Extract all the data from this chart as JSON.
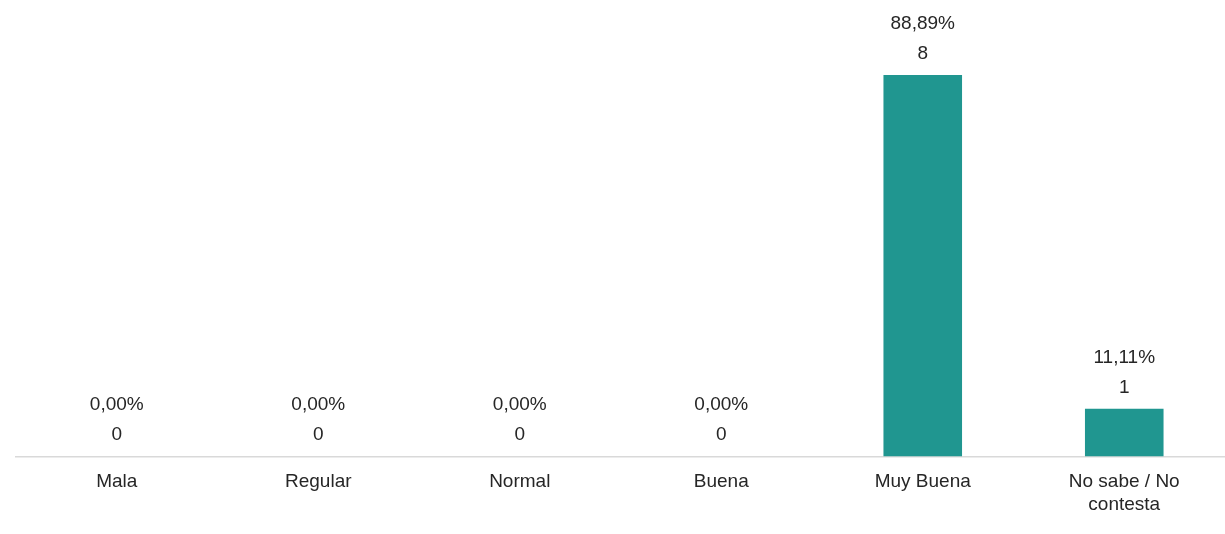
{
  "chart_data": {
    "type": "bar",
    "categories": [
      "Mala",
      "Regular",
      "Normal",
      "Buena",
      "Muy Buena",
      "No sabe / No contesta"
    ],
    "values": [
      0,
      0,
      0,
      0,
      8,
      1
    ],
    "color": "#209690",
    "value_labels": [
      "0,00%\n0",
      "0,00%\n0",
      "0,00%\n0",
      "0,00%\n0",
      "88,89%\n8",
      "11,11%\n1"
    ],
    "grid": false,
    "legend": false
  }
}
